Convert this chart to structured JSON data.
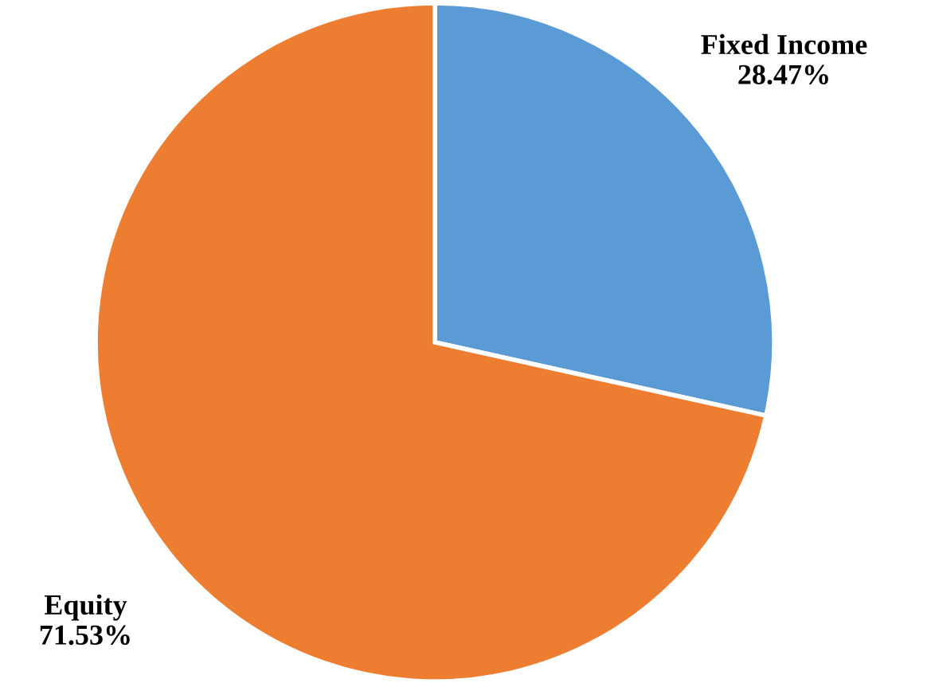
{
  "chart_data": {
    "type": "pie",
    "categories": [
      "Fixed Income",
      "Equity"
    ],
    "values": [
      28.47,
      71.53
    ],
    "value_labels": [
      "28.47%",
      "71.53%"
    ],
    "colors": [
      "#5b9bd5",
      "#ed7d31"
    ],
    "legend": false
  }
}
